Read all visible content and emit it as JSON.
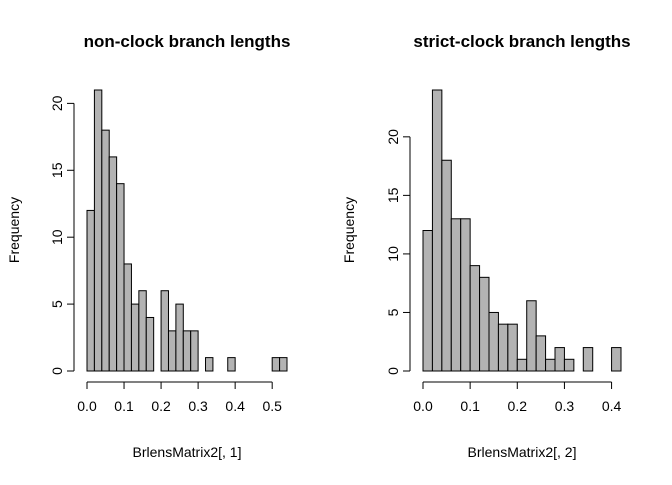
{
  "chart_data": [
    {
      "type": "bar",
      "title": "non-clock branch lengths",
      "xlabel": "BrlensMatrix2[, 1]",
      "ylabel": "Frequency",
      "bin_edges": [
        0.0,
        0.02,
        0.04,
        0.06,
        0.08,
        0.1,
        0.12,
        0.14,
        0.16,
        0.18,
        0.2,
        0.22,
        0.24,
        0.26,
        0.28,
        0.3,
        0.32,
        0.34,
        0.36,
        0.38,
        0.4,
        0.42,
        0.44,
        0.46,
        0.48,
        0.5,
        0.52,
        0.54
      ],
      "values": [
        12,
        21,
        18,
        16,
        14,
        8,
        5,
        6,
        4,
        0,
        6,
        3,
        5,
        3,
        3,
        0,
        1,
        0,
        0,
        1,
        0,
        0,
        0,
        0,
        0,
        1,
        1
      ],
      "xlim": [
        0.0,
        0.54
      ],
      "ylim": [
        0,
        21
      ],
      "xticks": [
        0.0,
        0.1,
        0.2,
        0.3,
        0.4,
        0.5
      ],
      "xtick_labels": [
        "0.0",
        "0.1",
        "0.2",
        "0.3",
        "0.4",
        "0.5"
      ],
      "yticks": [
        0,
        5,
        10,
        15,
        20
      ],
      "ytick_labels": [
        "0",
        "5",
        "10",
        "15",
        "20"
      ]
    },
    {
      "type": "bar",
      "title": "strict-clock branch lengths",
      "xlabel": "BrlensMatrix2[, 2]",
      "ylabel": "Frequency",
      "bin_edges": [
        0.0,
        0.02,
        0.04,
        0.06,
        0.08,
        0.1,
        0.12,
        0.14,
        0.16,
        0.18,
        0.2,
        0.22,
        0.24,
        0.26,
        0.28,
        0.3,
        0.32,
        0.34,
        0.36,
        0.38,
        0.4,
        0.42
      ],
      "values": [
        12,
        24,
        18,
        13,
        13,
        9,
        8,
        5,
        4,
        4,
        1,
        6,
        3,
        1,
        2,
        1,
        0,
        2,
        0,
        0,
        2
      ],
      "xlim": [
        0.0,
        0.42
      ],
      "ylim": [
        0,
        24
      ],
      "xticks": [
        0.0,
        0.1,
        0.2,
        0.3,
        0.4
      ],
      "xtick_labels": [
        "0.0",
        "0.1",
        "0.2",
        "0.3",
        "0.4"
      ],
      "yticks": [
        0,
        5,
        10,
        15,
        20
      ],
      "ytick_labels": [
        "0",
        "5",
        "10",
        "15",
        "20"
      ]
    }
  ]
}
